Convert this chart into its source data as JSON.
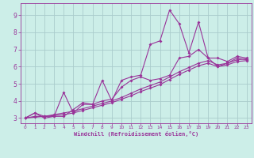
{
  "bg_color": "#cceee8",
  "grid_color": "#aacccc",
  "line_color": "#993399",
  "xlabel": "Windchill (Refroidissement éolien,°C)",
  "ylim": [
    2.7,
    9.7
  ],
  "xlim": [
    -0.5,
    23.5
  ],
  "yticks": [
    3,
    4,
    5,
    6,
    7,
    8,
    9
  ],
  "xticks": [
    0,
    1,
    2,
    3,
    4,
    5,
    6,
    7,
    8,
    9,
    10,
    11,
    12,
    13,
    14,
    15,
    16,
    17,
    18,
    19,
    20,
    21,
    22,
    23
  ],
  "series1_x": [
    0,
    1,
    2,
    3,
    4,
    5,
    6,
    7,
    8,
    9,
    10,
    11,
    12,
    13,
    14,
    15,
    16,
    17,
    18,
    19,
    20,
    21,
    22,
    23
  ],
  "series1_y": [
    3.0,
    3.3,
    3.1,
    3.1,
    4.5,
    3.3,
    3.8,
    3.8,
    5.2,
    4.0,
    5.2,
    5.4,
    5.5,
    7.3,
    7.5,
    9.3,
    8.5,
    6.8,
    8.6,
    6.5,
    6.5,
    6.3,
    6.6,
    6.5
  ],
  "series2_x": [
    0,
    1,
    2,
    3,
    4,
    5,
    6,
    7,
    8,
    9,
    10,
    11,
    12,
    13,
    14,
    15,
    16,
    17,
    18,
    19,
    20,
    21,
    22,
    23
  ],
  "series2_y": [
    3.0,
    3.3,
    3.0,
    3.1,
    3.1,
    3.5,
    3.9,
    3.8,
    4.0,
    4.1,
    4.8,
    5.2,
    5.4,
    5.2,
    5.3,
    5.5,
    6.5,
    6.6,
    7.0,
    6.5,
    6.0,
    6.2,
    6.5,
    6.4
  ],
  "series3_x": [
    0,
    1,
    2,
    3,
    4,
    5,
    6,
    7,
    8,
    9,
    10,
    11,
    12,
    13,
    14,
    15,
    16,
    17,
    18,
    19,
    20,
    21,
    22,
    23
  ],
  "series3_y": [
    3.0,
    3.1,
    3.1,
    3.2,
    3.3,
    3.4,
    3.55,
    3.7,
    3.85,
    4.0,
    4.2,
    4.45,
    4.7,
    4.9,
    5.1,
    5.4,
    5.7,
    5.95,
    6.2,
    6.35,
    6.1,
    6.2,
    6.4,
    6.45
  ],
  "series4_x": [
    0,
    1,
    2,
    3,
    4,
    5,
    6,
    7,
    8,
    9,
    10,
    11,
    12,
    13,
    14,
    15,
    16,
    17,
    18,
    19,
    20,
    21,
    22,
    23
  ],
  "series4_y": [
    3.0,
    3.05,
    3.1,
    3.15,
    3.2,
    3.3,
    3.45,
    3.6,
    3.75,
    3.9,
    4.1,
    4.3,
    4.55,
    4.75,
    4.95,
    5.25,
    5.55,
    5.8,
    6.05,
    6.2,
    6.0,
    6.1,
    6.3,
    6.35
  ]
}
